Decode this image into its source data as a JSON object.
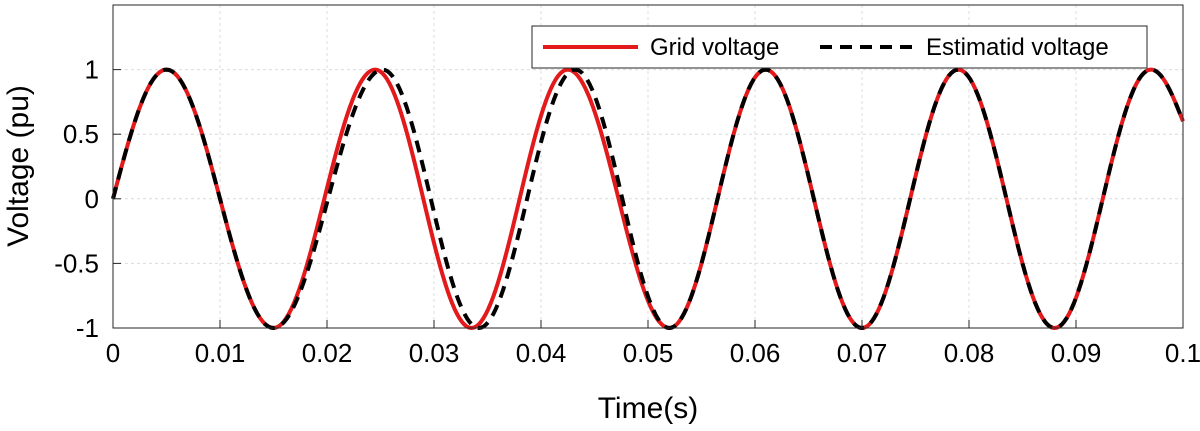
{
  "chart_data": {
    "type": "line",
    "title": "",
    "xlabel": "Time(s)",
    "ylabel": "Voltage (pu)",
    "xlim": [
      0,
      0.1
    ],
    "ylim": [
      -1,
      1.5
    ],
    "grid": true,
    "legend_placement": "top-right",
    "x_ticks": [
      "0",
      "0.01",
      "0.02",
      "0.03",
      "0.04",
      "0.05",
      "0.06",
      "0.07",
      "0.08",
      "0.09",
      "0.1"
    ],
    "y_ticks": [
      "-1",
      "-0.5",
      "0",
      "0.5",
      "1"
    ],
    "colors": {
      "grid_voltage": "#e31a1c",
      "estimated_voltage": "#000000"
    },
    "series": [
      {
        "name": "Grid voltage",
        "style": "solid",
        "x": [
          0,
          0.005,
          0.015,
          0.0245,
          0.0335,
          0.0425,
          0.052,
          0.061,
          0.07,
          0.079,
          0.088,
          0.097,
          0.1
        ],
        "y": [
          0,
          1,
          -1,
          1,
          -1,
          1,
          -1,
          1,
          -1,
          1,
          -1,
          1,
          0.6
        ]
      },
      {
        "name": "Estimatid voltage",
        "style": "dashed",
        "x": [
          0,
          0.005,
          0.015,
          0.0252,
          0.0342,
          0.0432,
          0.052,
          0.061,
          0.07,
          0.079,
          0.088,
          0.097,
          0.1
        ],
        "y": [
          0,
          1,
          -1,
          1,
          -1,
          1,
          -1,
          1,
          -1,
          1,
          -1,
          1,
          0.6
        ]
      }
    ]
  }
}
